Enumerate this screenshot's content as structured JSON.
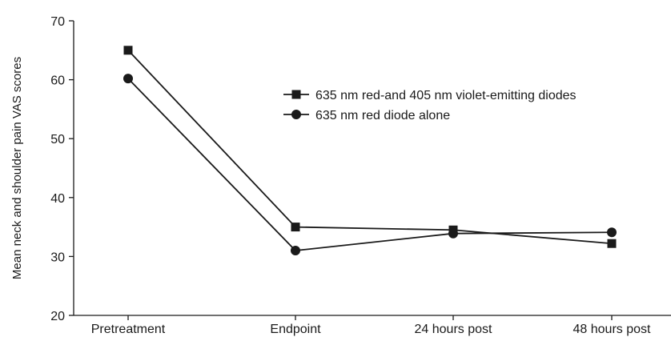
{
  "chart_data": {
    "type": "line",
    "categories": [
      "Pretreatment",
      "Endpoint",
      "24 hours post",
      "48 hours post"
    ],
    "series": [
      {
        "name": "635 nm red-and 405 nm violet-emitting diodes",
        "marker": "square",
        "values": [
          65,
          35,
          34.5,
          32.2
        ]
      },
      {
        "name": "635 nm red diode alone",
        "marker": "circle",
        "values": [
          60.2,
          31,
          33.9,
          34.1
        ]
      }
    ],
    "title": "",
    "xlabel": "",
    "ylabel": "Mean neck and shoulder pain VAS scores",
    "ylim": [
      20,
      70
    ],
    "yticks": [
      20,
      30,
      40,
      50,
      60,
      70
    ],
    "grid": false,
    "legend_position": "top-right",
    "line_color": "#1a1a1a"
  }
}
